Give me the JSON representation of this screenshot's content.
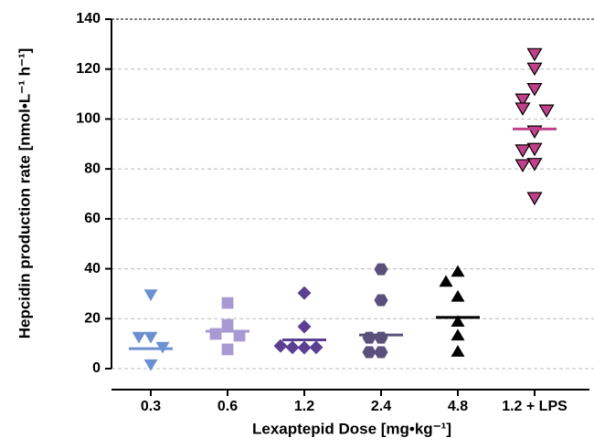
{
  "chart_data": {
    "type": "strip",
    "ylabel": "Hepcidin production rate [nmol•L⁻¹ h⁻¹]",
    "xlabel": "Lexaptepid Dose [mg•kg⁻¹]",
    "categories": [
      "0.3",
      "0.6",
      "1.2",
      "2.4",
      "4.8",
      "1.2 + LPS"
    ],
    "ylim": [
      0,
      140
    ],
    "yticks": [
      0,
      20,
      40,
      60,
      80,
      100,
      120,
      140
    ],
    "grid": true,
    "groups": [
      {
        "color": "#6b8fd1",
        "marker": "triangle-down",
        "values": [
          29.5,
          12.5,
          12.5,
          8.5,
          1.5
        ],
        "mean": 8
      },
      {
        "color": "#a898d3",
        "marker": "square",
        "values": [
          26.3,
          17.5,
          13.9,
          13.2,
          7.7
        ],
        "mean": 15
      },
      {
        "color": "#5b3f91",
        "marker": "diamond",
        "values": [
          30.3,
          16.8,
          8.4,
          8.5,
          8.5,
          9.1
        ],
        "mean": 11.5
      },
      {
        "color": "#5a507c",
        "marker": "hexagon",
        "values": [
          39.8,
          27.4,
          12.4,
          12.4,
          6.6,
          6.6
        ],
        "mean": 13.5
      },
      {
        "color": "#000000",
        "marker": "triangle-up",
        "values": [
          39,
          35,
          29,
          19,
          13.5,
          7
        ],
        "mean": 20.5
      },
      {
        "color": "#c0408a",
        "marker": "triangle-down",
        "outline": "#000000",
        "values": [
          126,
          120.2,
          112,
          107.8,
          104.2,
          103.4,
          95,
          88,
          87.4,
          82,
          81.5,
          68.3
        ],
        "mean": 96
      }
    ]
  }
}
